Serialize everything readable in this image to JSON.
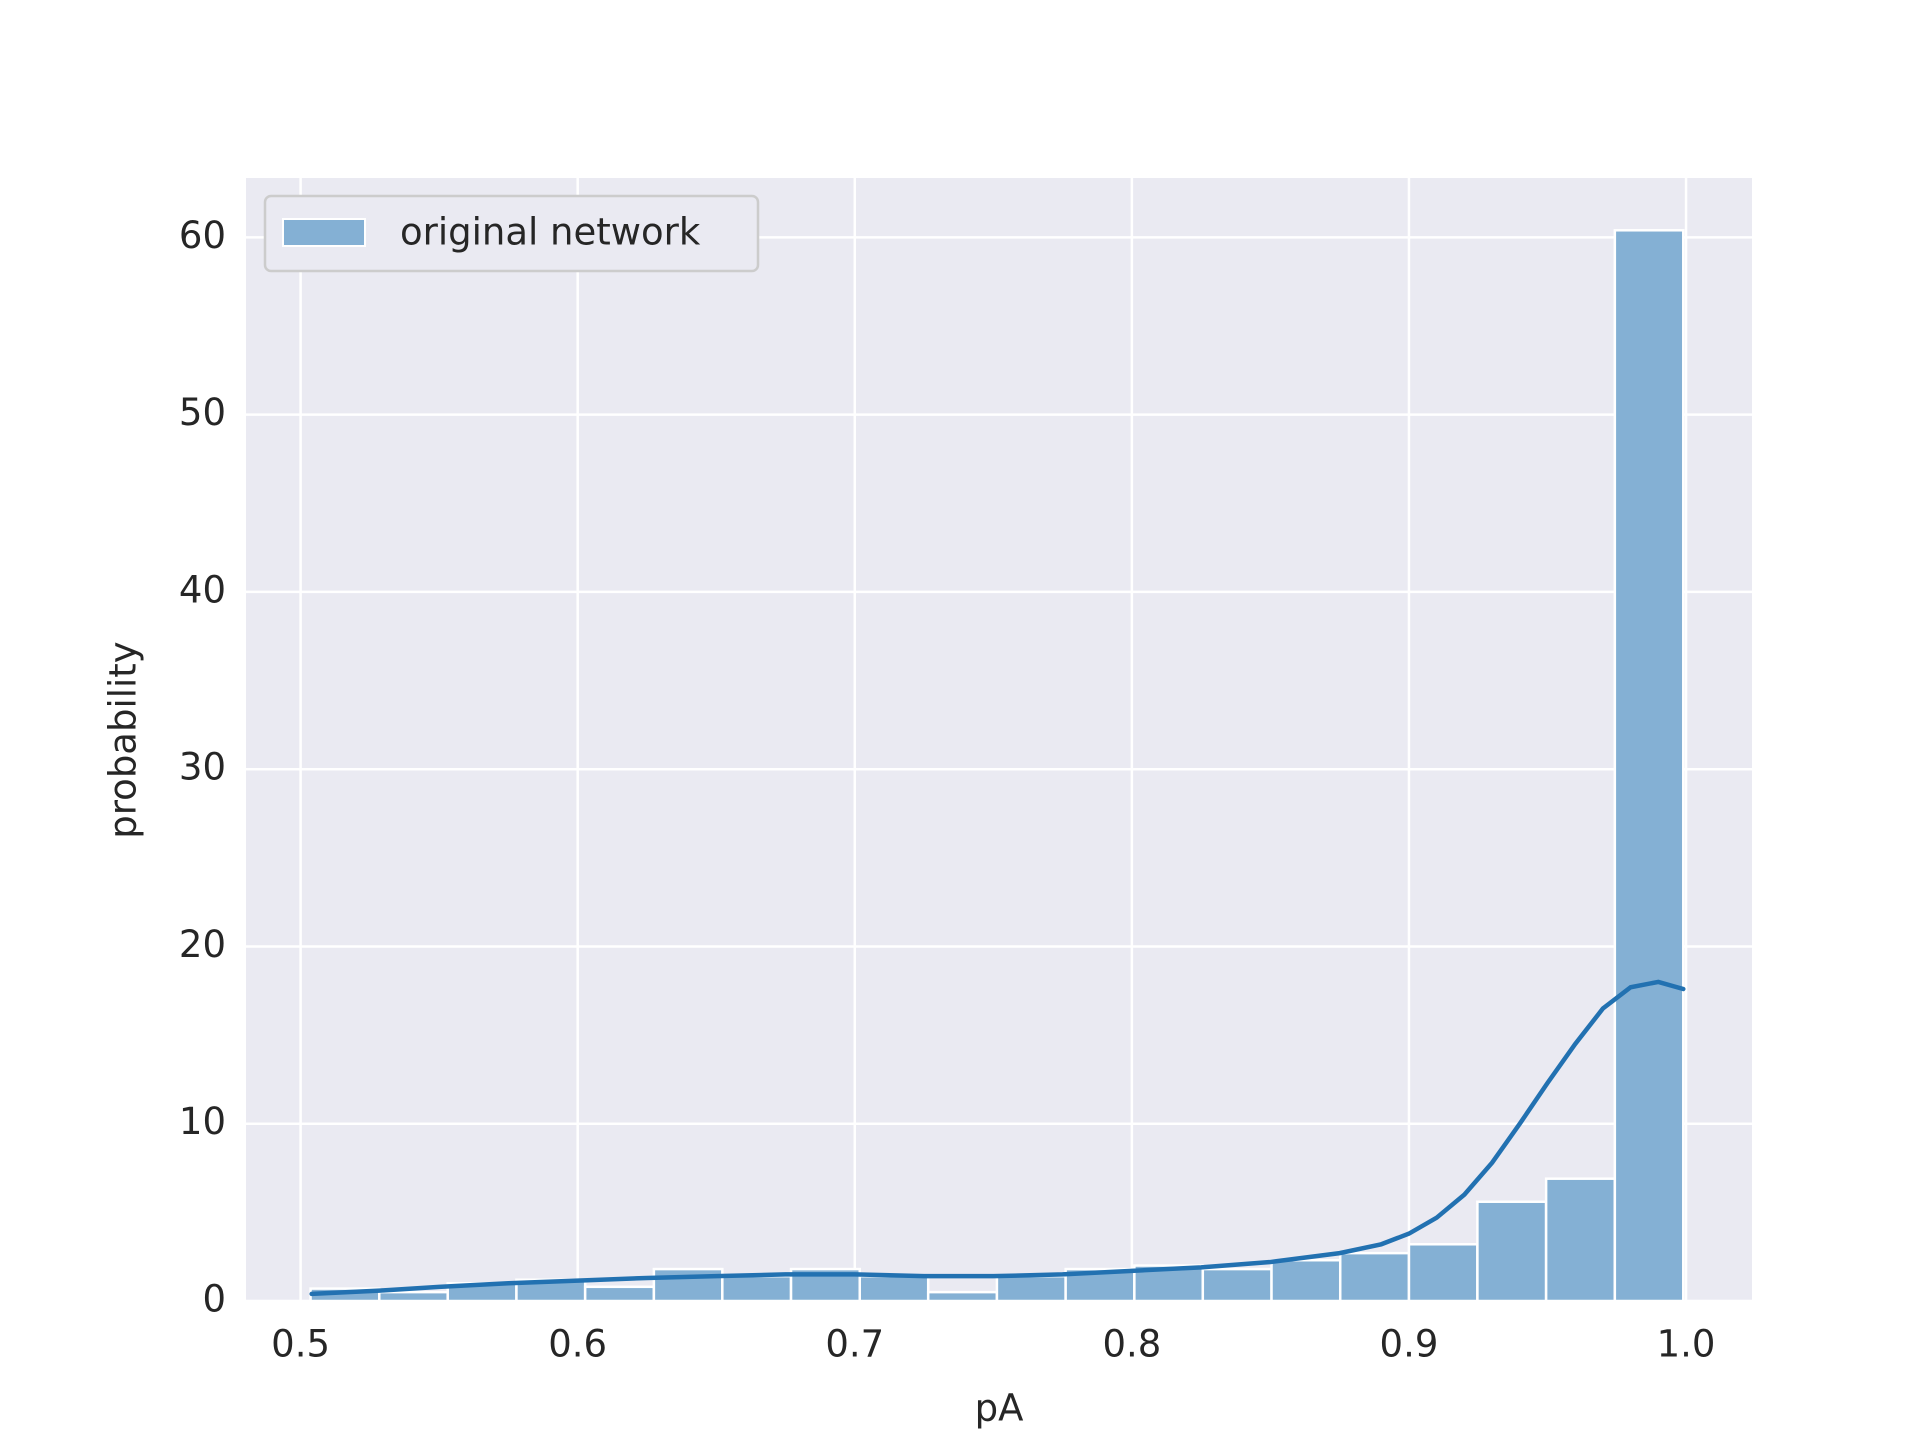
{
  "chart_data": {
    "type": "histogram",
    "xlabel": "pA",
    "ylabel": "probability",
    "bins": [
      0.5036,
      0.5284,
      0.5531,
      0.5779,
      0.6027,
      0.6275,
      0.6522,
      0.677,
      0.7018,
      0.7265,
      0.7513,
      0.7761,
      0.8009,
      0.8256,
      0.8504,
      0.8752,
      0.9,
      0.9247,
      0.9495,
      0.9743,
      0.999
    ],
    "series": [
      {
        "name": "original network",
        "color": "#84b0d4",
        "values": [
          0.7,
          0.5,
          1.0,
          1.2,
          0.8,
          1.8,
          1.4,
          1.8,
          1.4,
          0.5,
          1.4,
          1.8,
          2.0,
          1.8,
          2.3,
          2.7,
          3.2,
          5.6,
          6.9,
          60.4
        ]
      }
    ],
    "kde": {
      "color": "#2271b1",
      "x": [
        0.504,
        0.53,
        0.55,
        0.575,
        0.6,
        0.625,
        0.65,
        0.675,
        0.7,
        0.725,
        0.75,
        0.775,
        0.8,
        0.825,
        0.85,
        0.875,
        0.89,
        0.9,
        0.91,
        0.92,
        0.93,
        0.94,
        0.95,
        0.96,
        0.97,
        0.98,
        0.99,
        0.999
      ],
      "values": [
        0.4,
        0.6,
        0.8,
        1.0,
        1.15,
        1.3,
        1.4,
        1.5,
        1.5,
        1.4,
        1.4,
        1.5,
        1.7,
        1.9,
        2.2,
        2.7,
        3.2,
        3.8,
        4.7,
        6.0,
        7.8,
        10.0,
        12.3,
        14.5,
        16.5,
        17.7,
        18.0,
        17.6
      ]
    },
    "xlim": [
      0.4803,
      1.0238
    ],
    "ylim": [
      0,
      63.35
    ],
    "xticks": [
      0.5,
      0.6,
      0.7,
      0.8,
      0.9,
      {
        "value": 1,
        "label": "1.0"
      }
    ],
    "yticks": [
      0,
      10,
      20,
      30,
      40,
      50,
      60
    ],
    "grid": true,
    "legend": "upper left"
  }
}
